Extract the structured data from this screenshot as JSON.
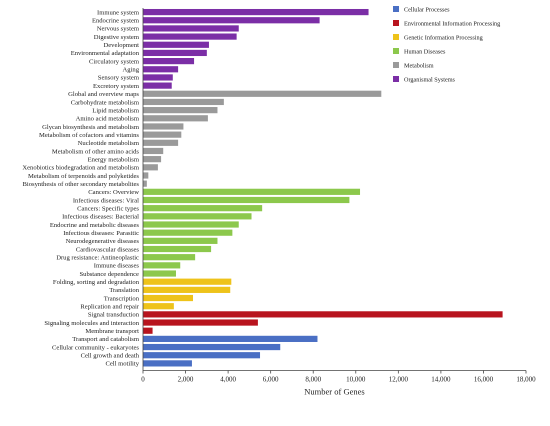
{
  "chart_data": {
    "type": "bar",
    "orientation": "horizontal",
    "title": "",
    "xlabel": "Number of Genes",
    "ylabel": "",
    "xlim": [
      0,
      18000
    ],
    "xticks": [
      0,
      2000,
      4000,
      6000,
      8000,
      10000,
      12000,
      14000,
      16000,
      18000
    ],
    "xtick_labels": [
      "0",
      "2,000",
      "4,000",
      "6,000",
      "8,000",
      "10,000",
      "12,000",
      "14,000",
      "16,000",
      "18,000"
    ],
    "legend_position": "top-right",
    "groups": [
      {
        "name": "Cellular Processes",
        "color": "#4a6fc4"
      },
      {
        "name": "Environmental Information Processing",
        "color": "#b8141e"
      },
      {
        "name": "Genetic Information Processing",
        "color": "#eec31a"
      },
      {
        "name": "Human Diseases",
        "color": "#8cc84c"
      },
      {
        "name": "Metabolism",
        "color": "#9a9a9a"
      },
      {
        "name": "Organismal Systems",
        "color": "#7b2ea6"
      }
    ],
    "bars": [
      {
        "label": "Immune system",
        "value": 10600,
        "group": 5
      },
      {
        "label": "Endocrine system",
        "value": 8300,
        "group": 5
      },
      {
        "label": "Nervous system",
        "value": 4500,
        "group": 5
      },
      {
        "label": "Digestive system",
        "value": 4400,
        "group": 5
      },
      {
        "label": "Development",
        "value": 3100,
        "group": 5
      },
      {
        "label": "Environmental adaptation",
        "value": 3000,
        "group": 5
      },
      {
        "label": "Circulatory system",
        "value": 2400,
        "group": 5
      },
      {
        "label": "Aging",
        "value": 1650,
        "group": 5
      },
      {
        "label": "Sensory system",
        "value": 1400,
        "group": 5
      },
      {
        "label": "Excretory system",
        "value": 1350,
        "group": 5
      },
      {
        "label": "Global and overview maps",
        "value": 11200,
        "group": 4
      },
      {
        "label": "Carbohydrate metabolism",
        "value": 3800,
        "group": 4
      },
      {
        "label": "Lipid metabolism",
        "value": 3500,
        "group": 4
      },
      {
        "label": "Amino acid metabolism",
        "value": 3050,
        "group": 4
      },
      {
        "label": "Glycan biosynthesis and metabolism",
        "value": 1900,
        "group": 4
      },
      {
        "label": "Metabolism of cofactors and vitamins",
        "value": 1800,
        "group": 4
      },
      {
        "label": "Nucleotide metabolism",
        "value": 1650,
        "group": 4
      },
      {
        "label": "Metabolism of other amino acids",
        "value": 950,
        "group": 4
      },
      {
        "label": "Energy metabolism",
        "value": 850,
        "group": 4
      },
      {
        "label": "Xenobiotics biodegradation and metabolism",
        "value": 700,
        "group": 4
      },
      {
        "label": "Metabolism of terpenoids and polyketides",
        "value": 250,
        "group": 4
      },
      {
        "label": "Biosynthesis of other secondary metabolites",
        "value": 180,
        "group": 4
      },
      {
        "label": "Cancers: Overview",
        "value": 10200,
        "group": 3
      },
      {
        "label": "Infectious diseases: Viral",
        "value": 9700,
        "group": 3
      },
      {
        "label": "Cancers: Specific types",
        "value": 5600,
        "group": 3
      },
      {
        "label": "Infectious diseases: Bacterial",
        "value": 5100,
        "group": 3
      },
      {
        "label": "Endocrine and metabolic diseases",
        "value": 4500,
        "group": 3
      },
      {
        "label": "Infectious diseases: Parasitic",
        "value": 4200,
        "group": 3
      },
      {
        "label": "Neurodegenerative diseases",
        "value": 3500,
        "group": 3
      },
      {
        "label": "Cardiovascular diseases",
        "value": 3200,
        "group": 3
      },
      {
        "label": "Drug resistance: Antineoplastic",
        "value": 2450,
        "group": 3
      },
      {
        "label": "Immune diseases",
        "value": 1750,
        "group": 3
      },
      {
        "label": "Substance dependence",
        "value": 1550,
        "group": 3
      },
      {
        "label": "Folding, sorting and degradation",
        "value": 4150,
        "group": 2
      },
      {
        "label": "Translation",
        "value": 4100,
        "group": 2
      },
      {
        "label": "Transcription",
        "value": 2350,
        "group": 2
      },
      {
        "label": "Replication and repair",
        "value": 1450,
        "group": 2
      },
      {
        "label": "Signal transduction",
        "value": 16900,
        "group": 1
      },
      {
        "label": "Signaling molecules and interaction",
        "value": 5400,
        "group": 1
      },
      {
        "label": "Membrane transport",
        "value": 450,
        "group": 1
      },
      {
        "label": "Transport and catabolism",
        "value": 8200,
        "group": 0
      },
      {
        "label": "Cellular community - eukaryotes",
        "value": 6450,
        "group": 0
      },
      {
        "label": "Cell growth and death",
        "value": 5500,
        "group": 0
      },
      {
        "label": "Cell motility",
        "value": 2300,
        "group": 0
      }
    ]
  }
}
